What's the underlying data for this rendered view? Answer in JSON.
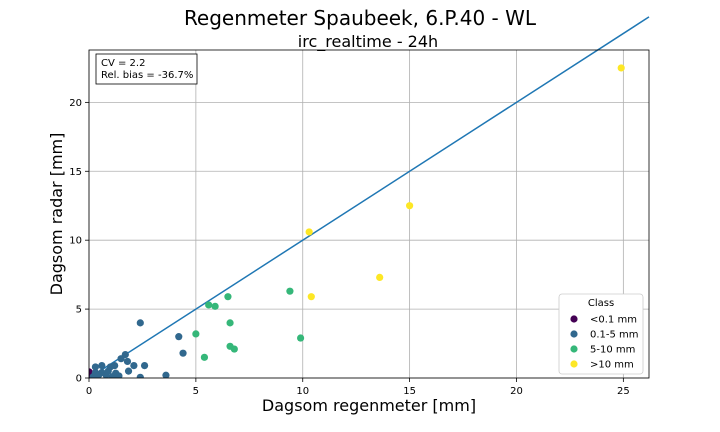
{
  "chart_data": {
    "type": "scatter",
    "title": "Regenmeter Spaubeek, 6.P.40 - WL",
    "subtitle": "irc_realtime - 24h",
    "xlabel": "Dagsom regenmeter [mm]",
    "ylabel": "Dagsom radar [mm]",
    "xlim": [
      0,
      26.2
    ],
    "ylim": [
      0,
      23.8
    ],
    "x_ticks": [
      0,
      5,
      10,
      15,
      20,
      25
    ],
    "y_ticks": [
      0,
      5,
      10,
      15,
      20
    ],
    "grid": true,
    "stats": {
      "cv": "CV = 2.2",
      "bias": "Rel. bias = -36.7%"
    },
    "reference_line": {
      "x": [
        0,
        26.2
      ],
      "y": [
        0,
        26.2
      ]
    },
    "legend": {
      "title": "Class",
      "placement": "lower-right"
    },
    "series": [
      {
        "name": "<0.1 mm",
        "color": "#440154",
        "points": [
          [
            0.02,
            0.3
          ],
          [
            0.0,
            0.45
          ],
          [
            0.0,
            0.1
          ]
        ]
      },
      {
        "name": "0.1-5 mm",
        "color": "#31688e",
        "points": [
          [
            0.2,
            0.1
          ],
          [
            0.3,
            0.4
          ],
          [
            0.3,
            0.8
          ],
          [
            0.45,
            0.2
          ],
          [
            0.6,
            0.9
          ],
          [
            0.6,
            0.4
          ],
          [
            0.8,
            0.2
          ],
          [
            0.9,
            0.5
          ],
          [
            1.0,
            0.8
          ],
          [
            1.1,
            0.1
          ],
          [
            1.2,
            0.9
          ],
          [
            1.25,
            0.35
          ],
          [
            1.3,
            0.05
          ],
          [
            1.4,
            0.15
          ],
          [
            1.5,
            1.4
          ],
          [
            1.7,
            1.7
          ],
          [
            1.8,
            1.2
          ],
          [
            1.85,
            0.5
          ],
          [
            2.1,
            0.9
          ],
          [
            2.4,
            0.05
          ],
          [
            2.4,
            4.0
          ],
          [
            2.6,
            0.9
          ],
          [
            3.6,
            0.2
          ],
          [
            4.2,
            3.0
          ],
          [
            4.4,
            1.8
          ]
        ]
      },
      {
        "name": "5-10 mm",
        "color": "#35b779",
        "points": [
          [
            5.0,
            3.2
          ],
          [
            5.4,
            1.5
          ],
          [
            5.6,
            5.3
          ],
          [
            5.9,
            5.2
          ],
          [
            6.5,
            5.9
          ],
          [
            6.6,
            2.3
          ],
          [
            6.6,
            4.0
          ],
          [
            6.8,
            2.1
          ],
          [
            9.4,
            6.3
          ],
          [
            9.9,
            2.9
          ]
        ]
      },
      {
        "name": ">10 mm",
        "color": "#fde725",
        "points": [
          [
            10.3,
            10.6
          ],
          [
            10.4,
            5.9
          ],
          [
            13.6,
            7.3
          ],
          [
            15.0,
            12.5
          ],
          [
            24.9,
            22.5
          ]
        ]
      }
    ]
  }
}
